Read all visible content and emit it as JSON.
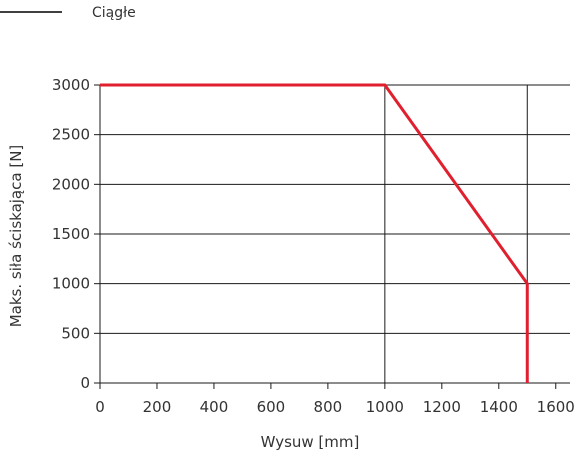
{
  "chart_data": {
    "type": "line",
    "title": "",
    "xlabel": "Wysuw [mm]",
    "ylabel": "Maks. siła ściskająca [N]",
    "xlim": [
      0,
      1650
    ],
    "ylim": [
      0,
      3000
    ],
    "x_ticks": [
      0,
      200,
      400,
      600,
      800,
      1000,
      1200,
      1400,
      1600
    ],
    "y_ticks": [
      0,
      500,
      1000,
      1500,
      2000,
      2500,
      3000
    ],
    "x_tick_labels": [
      "0",
      "200",
      "400",
      "600",
      "800",
      "1000",
      "1200",
      "1400",
      "1600"
    ],
    "y_tick_labels": [
      "0",
      "500",
      "1000",
      "1500",
      "2000",
      "2500",
      "3000"
    ],
    "grid": "horizontal",
    "reference_lines_x": [
      1000,
      1500
    ],
    "legend_position": "top-left",
    "series": [
      {
        "name": "Ciągłe",
        "color": "#e0202e",
        "legend_color": "#000000",
        "x": [
          0,
          1000,
          1500,
          1500
        ],
        "y": [
          3000,
          3000,
          1000,
          0
        ]
      }
    ]
  }
}
